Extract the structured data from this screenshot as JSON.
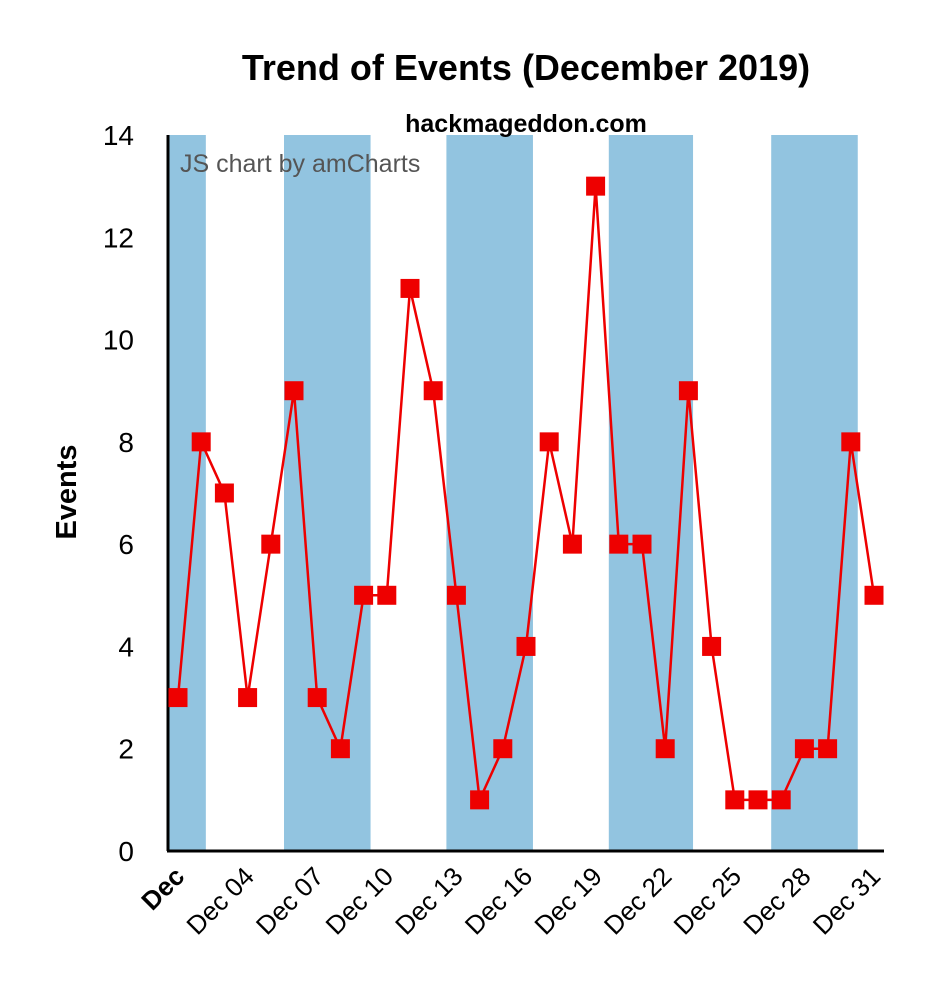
{
  "colors": {
    "band": "#92c4e0",
    "series": "#ee0000",
    "axis": "#000000",
    "watermark": "#555555"
  },
  "watermark": "JS chart by amCharts",
  "chart_data": {
    "type": "line",
    "title": "Trend of Events (December 2019)",
    "subtitle": "hackmageddon.com",
    "xlabel": "",
    "ylabel": "Events",
    "ylim": [
      0,
      14
    ],
    "yticks": [
      0,
      2,
      4,
      6,
      8,
      10,
      12,
      14
    ],
    "xlim": [
      1,
      31
    ],
    "xticks": [
      {
        "day": 1,
        "label": "Dec",
        "bold": true
      },
      {
        "day": 4,
        "label": "Dec 04"
      },
      {
        "day": 7,
        "label": "Dec 07"
      },
      {
        "day": 10,
        "label": "Dec 10"
      },
      {
        "day": 13,
        "label": "Dec 13"
      },
      {
        "day": 16,
        "label": "Dec 16"
      },
      {
        "day": 19,
        "label": "Dec 19"
      },
      {
        "day": 22,
        "label": "Dec 22"
      },
      {
        "day": 25,
        "label": "Dec 25"
      },
      {
        "day": 28,
        "label": "Dec 28"
      },
      {
        "day": 31,
        "label": "Dec 31"
      }
    ],
    "bands": [
      [
        1,
        2.2
      ],
      [
        6,
        9.3
      ],
      [
        13,
        16.3
      ],
      [
        20,
        23.2
      ],
      [
        27,
        30.3
      ]
    ],
    "series": [
      {
        "name": "Events",
        "x": [
          1,
          2,
          3,
          4,
          5,
          6,
          7,
          8,
          9,
          10,
          11,
          12,
          13,
          14,
          15,
          16,
          17,
          18,
          19,
          20,
          21,
          22,
          23,
          24,
          25,
          26,
          27,
          28,
          29,
          30,
          31
        ],
        "values": [
          3,
          8,
          7,
          3,
          6,
          9,
          3,
          2,
          5,
          5,
          11,
          9,
          5,
          1,
          2,
          4,
          8,
          6,
          13,
          6,
          6,
          2,
          9,
          4,
          1,
          1,
          1,
          2,
          2,
          8,
          5
        ]
      }
    ]
  }
}
